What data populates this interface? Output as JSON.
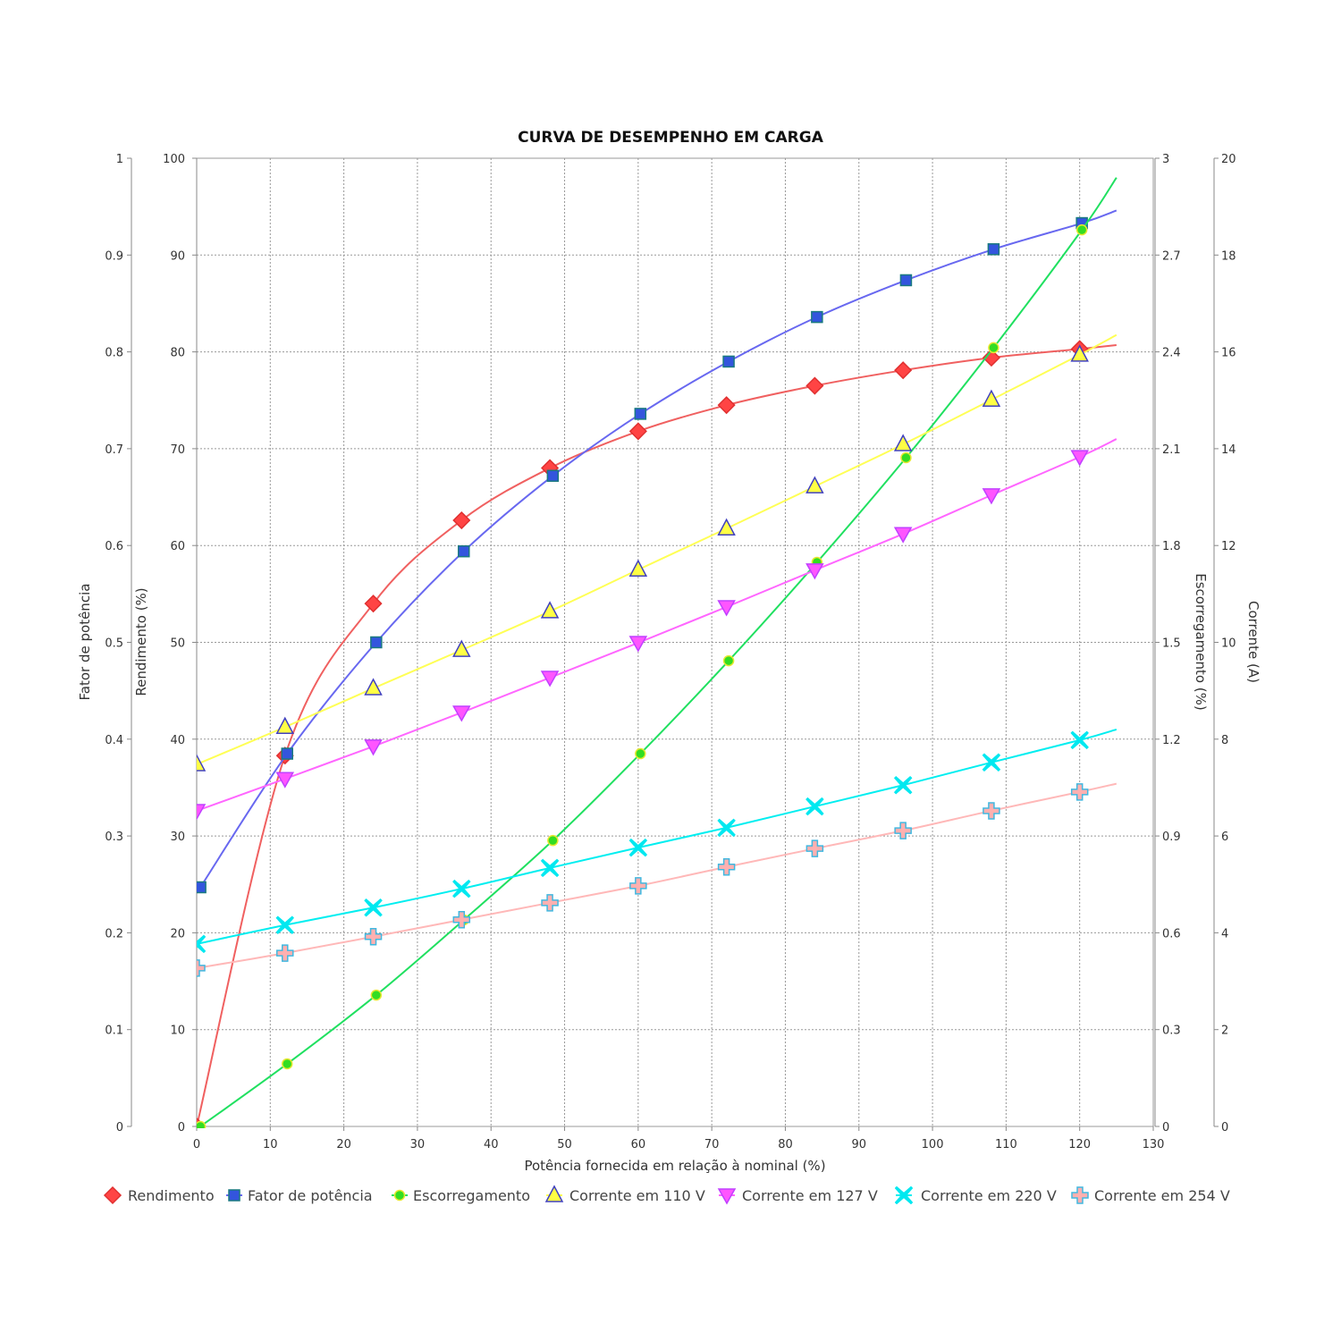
{
  "chart_data": {
    "type": "line",
    "title": "CURVA DE DESEMPENHO EM CARGA",
    "xlabel": "Potência fornecida em relação à nominal (%)",
    "xlim": [
      0,
      130
    ],
    "xticks": [
      "0",
      "10",
      "20",
      "30",
      "40",
      "50",
      "60",
      "70",
      "80",
      "90",
      "100",
      "110",
      "120",
      "130"
    ],
    "grid": true,
    "legend_position": "bottom",
    "axes": {
      "fator": {
        "label": "Fator de potência",
        "side": "left-outer",
        "ylim": [
          0,
          1
        ],
        "ticks": [
          "0",
          "0.1",
          "0.2",
          "0.3",
          "0.4",
          "0.5",
          "0.6",
          "0.7",
          "0.8",
          "0.9",
          "1"
        ]
      },
      "rendimento": {
        "label": "Rendimento (%)",
        "side": "left-inner",
        "ylim": [
          0,
          100
        ],
        "ticks": [
          "0",
          "10",
          "20",
          "30",
          "40",
          "50",
          "60",
          "70",
          "80",
          "90",
          "100"
        ]
      },
      "escorregamento": {
        "label": "Escorregamento (%)",
        "side": "right-inner",
        "ylim": [
          0,
          3
        ],
        "ticks": [
          "0",
          "0.3",
          "0.6",
          "0.9",
          "1.2",
          "1.5",
          "1.8",
          "2.1",
          "2.4",
          "2.7",
          "3"
        ]
      },
      "corrente": {
        "label": "Corrente (A)",
        "side": "right-outer",
        "ylim": [
          0,
          20
        ],
        "ticks": [
          "0",
          "2",
          "4",
          "6",
          "8",
          "10",
          "12",
          "14",
          "16",
          "18",
          "20"
        ]
      }
    },
    "series": [
      {
        "name": "Rendimento",
        "axis": "rendimento",
        "marker": "diamond",
        "color": "#f06060",
        "fill": "#ff4444",
        "stroke": "#e03030",
        "x": [
          0,
          12,
          24,
          36,
          48,
          60,
          72,
          84,
          96,
          108,
          120
        ],
        "y": [
          0,
          38.3,
          54.0,
          62.6,
          68.0,
          71.8,
          74.5,
          76.5,
          78.1,
          79.4,
          80.3
        ],
        "fit_end": [
          125,
          80.7
        ]
      },
      {
        "name": "Fator de potência",
        "axis": "fator",
        "marker": "square",
        "color": "#6868f0",
        "fill": "#3355dd",
        "stroke": "#1a7a80",
        "x": [
          0.5,
          12.3,
          24.4,
          36.3,
          48.4,
          60.3,
          72.3,
          84.3,
          96.4,
          108.3,
          120.3
        ],
        "y": [
          0.247,
          0.385,
          0.5,
          0.594,
          0.672,
          0.736,
          0.79,
          0.836,
          0.874,
          0.906,
          0.933
        ],
        "fit_end": [
          125,
          0.946
        ]
      },
      {
        "name": "Escorregamento",
        "axis": "escorregamento",
        "marker": "circle",
        "color": "#20e060",
        "fill": "#33dd22",
        "stroke": "#e8e830",
        "x": [
          0.5,
          12.3,
          24.4,
          36.3,
          48.4,
          60.3,
          72.3,
          84.3,
          96.4,
          108.3,
          120.3
        ],
        "y": [
          0,
          0.194,
          0.407,
          0.64,
          0.886,
          1.155,
          1.443,
          1.748,
          2.072,
          2.413,
          2.778
        ],
        "fit_end": [
          125,
          2.94
        ]
      },
      {
        "name": "Corrente em 110 V",
        "axis": "corrente",
        "marker": "triangle-up",
        "color": "#ffff55",
        "fill": "#ffff44",
        "stroke": "#4040c0",
        "x": [
          0,
          12,
          24,
          36,
          48,
          60,
          72,
          84,
          96,
          108,
          120
        ],
        "y": [
          7.48,
          8.25,
          9.05,
          9.84,
          10.64,
          11.5,
          12.35,
          13.22,
          14.09,
          15.01,
          15.94
        ],
        "fit_end": [
          125,
          16.35
        ]
      },
      {
        "name": "Corrente em 127 V",
        "axis": "corrente",
        "marker": "triangle-down",
        "color": "#ff66ff",
        "fill": "#ff55ff",
        "stroke": "#c040ff",
        "x": [
          0,
          12,
          24,
          36,
          48,
          60,
          72,
          84,
          96,
          108,
          120
        ],
        "y": [
          6.52,
          7.18,
          7.85,
          8.55,
          9.27,
          9.99,
          10.73,
          11.49,
          12.24,
          13.04,
          13.83
        ],
        "fit_end": [
          125,
          14.2
        ]
      },
      {
        "name": "Corrente em 220 V",
        "axis": "corrente",
        "marker": "x",
        "color": "#00eef0",
        "fill": "#00e8f0",
        "stroke": "#00e8f0",
        "x": [
          0,
          12,
          24,
          36,
          48,
          60,
          72,
          84,
          96,
          108,
          120
        ],
        "y": [
          3.77,
          4.16,
          4.52,
          4.91,
          5.34,
          5.76,
          6.17,
          6.61,
          7.05,
          7.52,
          7.98
        ],
        "fit_end": [
          125,
          8.2
        ]
      },
      {
        "name": "Corrente em 254 V",
        "axis": "corrente",
        "marker": "plus",
        "color": "#ffb8b8",
        "fill": "#ffb0b0",
        "stroke": "#40b8e0",
        "x": [
          0,
          12,
          24,
          36,
          48,
          60,
          72,
          84,
          96,
          108,
          120
        ],
        "y": [
          3.27,
          3.58,
          3.92,
          4.27,
          4.62,
          4.97,
          5.36,
          5.74,
          6.11,
          6.52,
          6.91
        ],
        "fit_end": [
          125,
          7.08
        ]
      }
    ]
  }
}
